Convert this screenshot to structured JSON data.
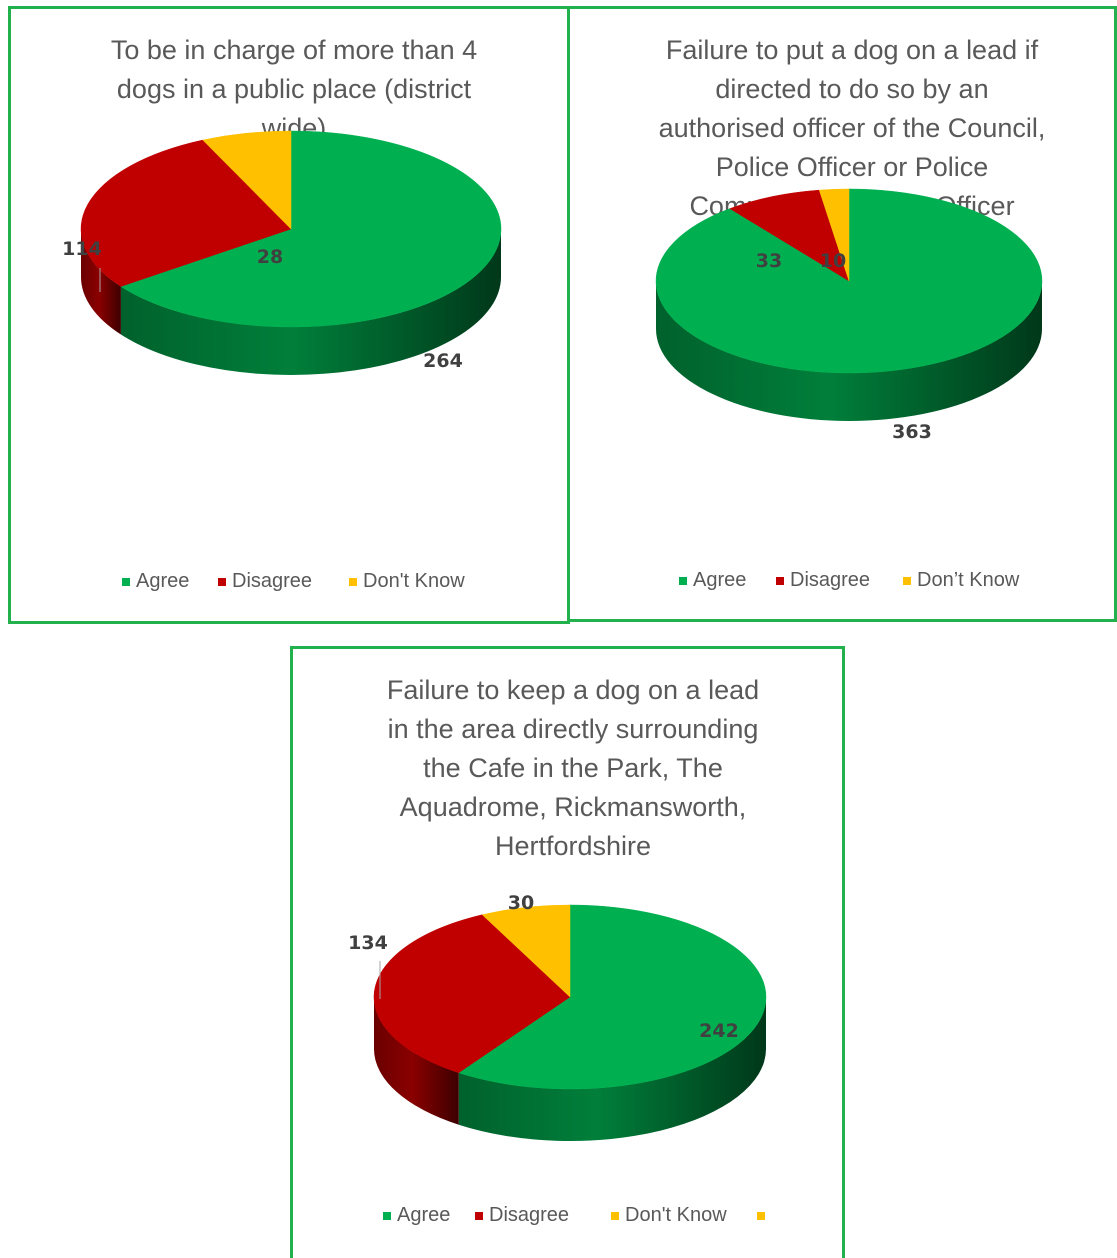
{
  "colors": {
    "agree": "#00b050",
    "disagree": "#c00000",
    "dont_know": "#ffc000",
    "border": "#22b14c"
  },
  "chart_data": [
    {
      "type": "pie",
      "style": "3d",
      "title_lines": [
        "To be in charge of more than 4",
        "dogs in a public place (district",
        "wide)"
      ],
      "legend_position": "bottom",
      "legend": [
        {
          "label": "Agree",
          "color": "#00b050"
        },
        {
          "label": "Disagree",
          "color": "#c00000"
        },
        {
          "label": "Don't Know",
          "color": "#ffc000"
        }
      ],
      "slices": [
        {
          "label": "Agree",
          "value": 264,
          "color": "#00b050"
        },
        {
          "label": "Disagree",
          "value": 114,
          "color": "#c00000"
        },
        {
          "label": "Don't Know",
          "value": 28,
          "color": "#ffc000"
        }
      ]
    },
    {
      "type": "pie",
      "style": "3d",
      "title_lines": [
        "Failure to put a dog on a lead if",
        "directed to do so by an",
        "authorised officer of the Council,",
        "Police Officer or Police",
        "Community Support Officer"
      ],
      "legend_position": "bottom",
      "legend": [
        {
          "label": "Agree",
          "color": "#00b050"
        },
        {
          "label": "Disagree",
          "color": "#c00000"
        },
        {
          "label": "Don’t Know",
          "color": "#ffc000"
        }
      ],
      "slices": [
        {
          "label": "Agree",
          "value": 363,
          "color": "#00b050"
        },
        {
          "label": "Disagree",
          "value": 33,
          "color": "#c00000"
        },
        {
          "label": "Don’t Know",
          "value": 10,
          "color": "#ffc000"
        }
      ]
    },
    {
      "type": "pie",
      "style": "3d",
      "title_lines": [
        "Failure to keep a dog on a lead",
        "in the area directly surrounding",
        "the Cafe in the Park, The",
        "Aquadrome, Rickmansworth,",
        "Hertfordshire"
      ],
      "legend_position": "bottom",
      "legend": [
        {
          "label": "Agree",
          "color": "#00b050"
        },
        {
          "label": "Disagree",
          "color": "#c00000"
        },
        {
          "label": "Don't Know",
          "color": "#ffc000"
        },
        {
          "label": "",
          "color": "#ffc000"
        }
      ],
      "slices": [
        {
          "label": "Agree",
          "value": 242,
          "color": "#00b050"
        },
        {
          "label": "Disagree",
          "value": 134,
          "color": "#c00000"
        },
        {
          "label": "Don't Know",
          "value": 30,
          "color": "#ffc000"
        }
      ]
    }
  ]
}
